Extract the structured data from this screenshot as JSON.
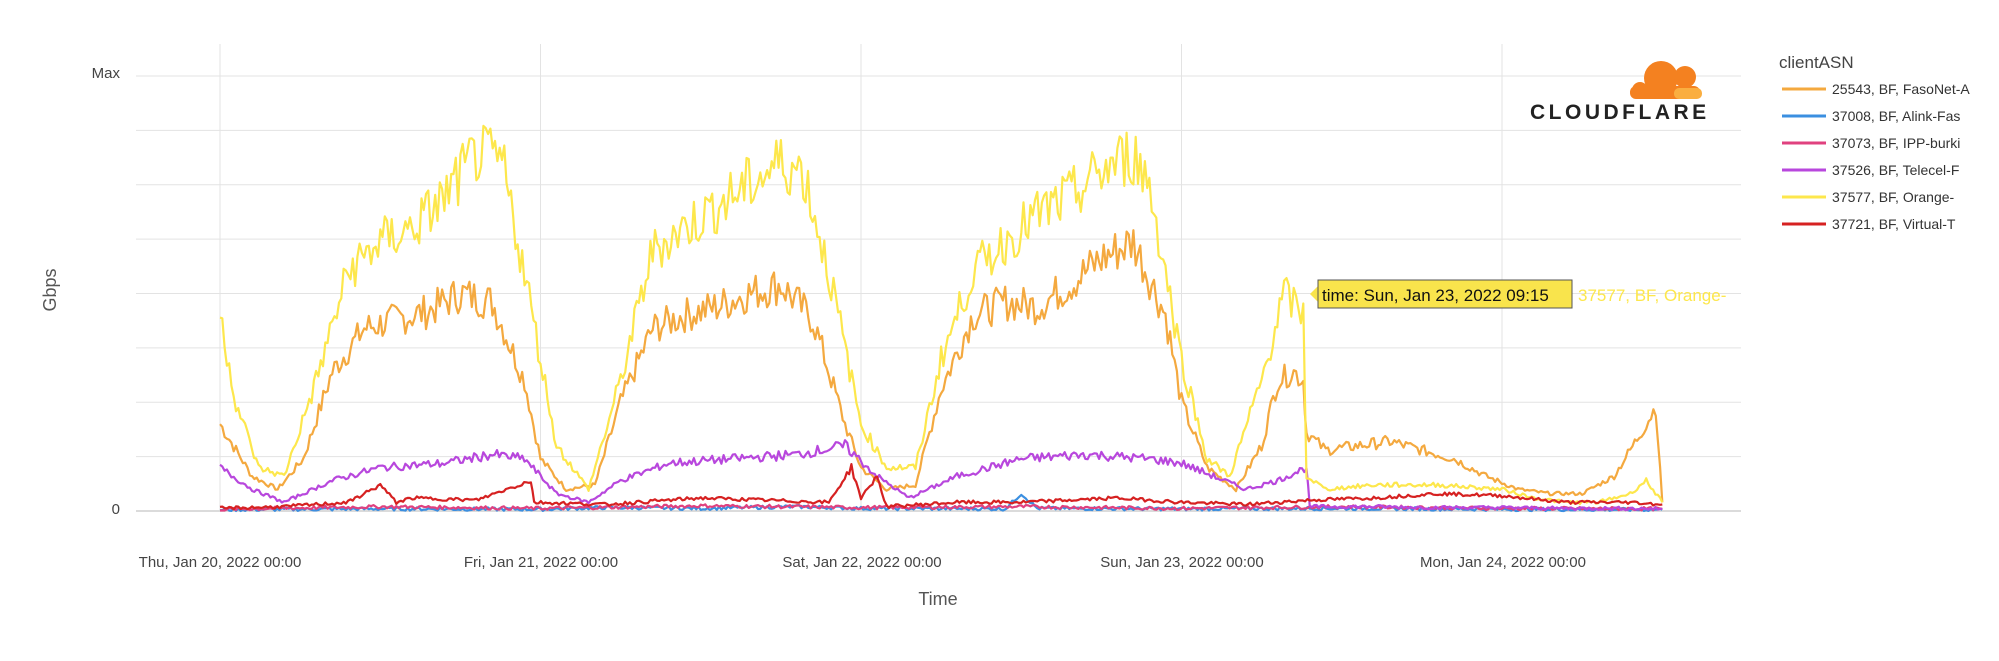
{
  "colors": {
    "grid": "#e3e3e3",
    "axis": "#cfcfcf",
    "tooltip_bg": "#f9e44c",
    "brand_orange": "#f48120",
    "brand_light": "#faae40"
  },
  "brand": {
    "name": "CLOUDFLARE",
    "icon": "cloud-icon"
  },
  "tooltip": {
    "label": "time: Sun, Jan 23, 2022 09:15",
    "series_label": "37577, BF, Orange-"
  },
  "chart_data": {
    "type": "line",
    "title": "",
    "xlabel": "Time",
    "ylabel": "Gbps",
    "y_tick_labels": [
      "0",
      "Max"
    ],
    "ylim": [
      0,
      1
    ],
    "xlim": [
      0,
      4.75
    ],
    "x_tick_labels": [
      "Thu, Jan 20, 2022 00:00",
      "Fri, Jan 21, 2022 00:00",
      "Sat, Jan 22, 2022 00:00",
      "Sun, Jan 23, 2022 00:00",
      "Mon, Jan 24, 2022 00:00"
    ],
    "x_unit": "days since Thu, Jan 20, 2022 00:00",
    "grid": true,
    "legend": {
      "title": "clientASN",
      "placement": "right"
    },
    "series": [
      {
        "name": "25543, BF, FasoNet-A",
        "color": "#f4a93f",
        "x": [
          0,
          0.1,
          0.18,
          0.26,
          0.35,
          0.45,
          0.55,
          0.65,
          0.75,
          0.85,
          0.95,
          1.0,
          1.08,
          1.17,
          1.25,
          1.35,
          1.45,
          1.55,
          1.65,
          1.75,
          1.85,
          1.95,
          2.0,
          2.08,
          2.17,
          2.25,
          2.35,
          2.45,
          2.55,
          2.65,
          2.75,
          2.85,
          2.95,
          3.0,
          3.08,
          3.17,
          3.25,
          3.3,
          3.35,
          3.38,
          3.39,
          3.45,
          3.55,
          3.65,
          3.75,
          3.85,
          3.95,
          4.05,
          4.15,
          4.25,
          4.35,
          4.45,
          4.48,
          4.5
        ],
        "values": [
          0.2,
          0.08,
          0.05,
          0.12,
          0.32,
          0.42,
          0.44,
          0.46,
          0.5,
          0.48,
          0.3,
          0.12,
          0.05,
          0.06,
          0.25,
          0.42,
          0.45,
          0.47,
          0.5,
          0.52,
          0.44,
          0.2,
          0.1,
          0.05,
          0.06,
          0.28,
          0.45,
          0.48,
          0.47,
          0.52,
          0.58,
          0.62,
          0.45,
          0.25,
          0.1,
          0.05,
          0.15,
          0.3,
          0.32,
          0.3,
          0.18,
          0.14,
          0.15,
          0.16,
          0.14,
          0.12,
          0.08,
          0.05,
          0.04,
          0.04,
          0.08,
          0.2,
          0.24,
          0.02
        ]
      },
      {
        "name": "37008, BF, Alink-Fas",
        "color": "#3b8fe0",
        "x": [
          0,
          0.5,
          1.0,
          1.2,
          1.5,
          1.8,
          2.0,
          2.45,
          2.5,
          2.55,
          3.0,
          3.5,
          4.0,
          4.5
        ],
        "values": [
          0.003,
          0.005,
          0.004,
          0.008,
          0.006,
          0.01,
          0.006,
          0.005,
          0.04,
          0.006,
          0.005,
          0.006,
          0.004,
          0.003
        ]
      },
      {
        "name": "37073, BF, IPP-burki",
        "color": "#e0417f",
        "x": [
          0,
          0.5,
          1.0,
          1.5,
          2.0,
          2.5,
          3.0,
          3.5,
          4.0,
          4.5
        ],
        "values": [
          0.004,
          0.01,
          0.006,
          0.012,
          0.008,
          0.01,
          0.006,
          0.01,
          0.006,
          0.005
        ]
      },
      {
        "name": "37526, BF, Telecel-F",
        "color": "#b847dd",
        "x": [
          0,
          0.1,
          0.2,
          0.35,
          0.5,
          0.7,
          0.85,
          0.95,
          1.05,
          1.15,
          1.25,
          1.4,
          1.6,
          1.8,
          1.95,
          2.05,
          2.15,
          2.3,
          2.5,
          2.7,
          2.9,
          3.0,
          3.1,
          3.2,
          3.3,
          3.39,
          3.4,
          3.6,
          3.8,
          4.0,
          4.2,
          4.4,
          4.5
        ],
        "values": [
          0.1,
          0.05,
          0.02,
          0.07,
          0.1,
          0.11,
          0.13,
          0.12,
          0.04,
          0.02,
          0.07,
          0.11,
          0.12,
          0.13,
          0.15,
          0.08,
          0.03,
          0.08,
          0.12,
          0.13,
          0.12,
          0.11,
          0.08,
          0.05,
          0.07,
          0.1,
          0.01,
          0.01,
          0.008,
          0.008,
          0.006,
          0.006,
          0.005
        ]
      },
      {
        "name": "37577, BF, Orange-",
        "color": "#fde74c",
        "x": [
          0,
          0.05,
          0.12,
          0.2,
          0.3,
          0.4,
          0.5,
          0.6,
          0.7,
          0.8,
          0.88,
          0.95,
          1.05,
          1.15,
          1.25,
          1.35,
          1.45,
          1.55,
          1.65,
          1.75,
          1.82,
          1.9,
          2.0,
          2.08,
          2.17,
          2.25,
          2.35,
          2.45,
          2.55,
          2.65,
          2.75,
          2.85,
          2.9,
          3.0,
          3.08,
          3.15,
          3.25,
          3.32,
          3.38,
          3.39,
          3.45,
          3.6,
          3.8,
          4.0,
          4.1,
          4.2,
          4.3,
          4.4,
          4.45,
          4.5
        ],
        "values": [
          0.45,
          0.25,
          0.1,
          0.08,
          0.3,
          0.55,
          0.62,
          0.65,
          0.72,
          0.82,
          0.8,
          0.55,
          0.15,
          0.05,
          0.3,
          0.6,
          0.65,
          0.7,
          0.75,
          0.8,
          0.78,
          0.55,
          0.2,
          0.1,
          0.1,
          0.35,
          0.55,
          0.62,
          0.68,
          0.72,
          0.78,
          0.82,
          0.75,
          0.35,
          0.12,
          0.08,
          0.3,
          0.5,
          0.45,
          0.08,
          0.05,
          0.06,
          0.06,
          0.05,
          0.03,
          0.02,
          0.02,
          0.04,
          0.07,
          0.02
        ]
      },
      {
        "name": "37721, BF, Virtual-T",
        "color": "#d62121",
        "x": [
          0,
          0.2,
          0.4,
          0.5,
          0.55,
          0.6,
          0.8,
          0.97,
          0.98,
          1.2,
          1.5,
          1.9,
          1.97,
          2.0,
          2.05,
          2.08,
          2.3,
          2.5,
          2.8,
          3.0,
          3.2,
          3.4,
          3.6,
          3.8,
          4.0,
          4.2,
          4.4,
          4.5
        ],
        "values": [
          0.006,
          0.01,
          0.02,
          0.06,
          0.02,
          0.03,
          0.025,
          0.07,
          0.02,
          0.015,
          0.03,
          0.02,
          0.1,
          0.03,
          0.08,
          0.01,
          0.02,
          0.02,
          0.03,
          0.02,
          0.015,
          0.025,
          0.03,
          0.04,
          0.035,
          0.02,
          0.02,
          0.015
        ]
      }
    ]
  }
}
